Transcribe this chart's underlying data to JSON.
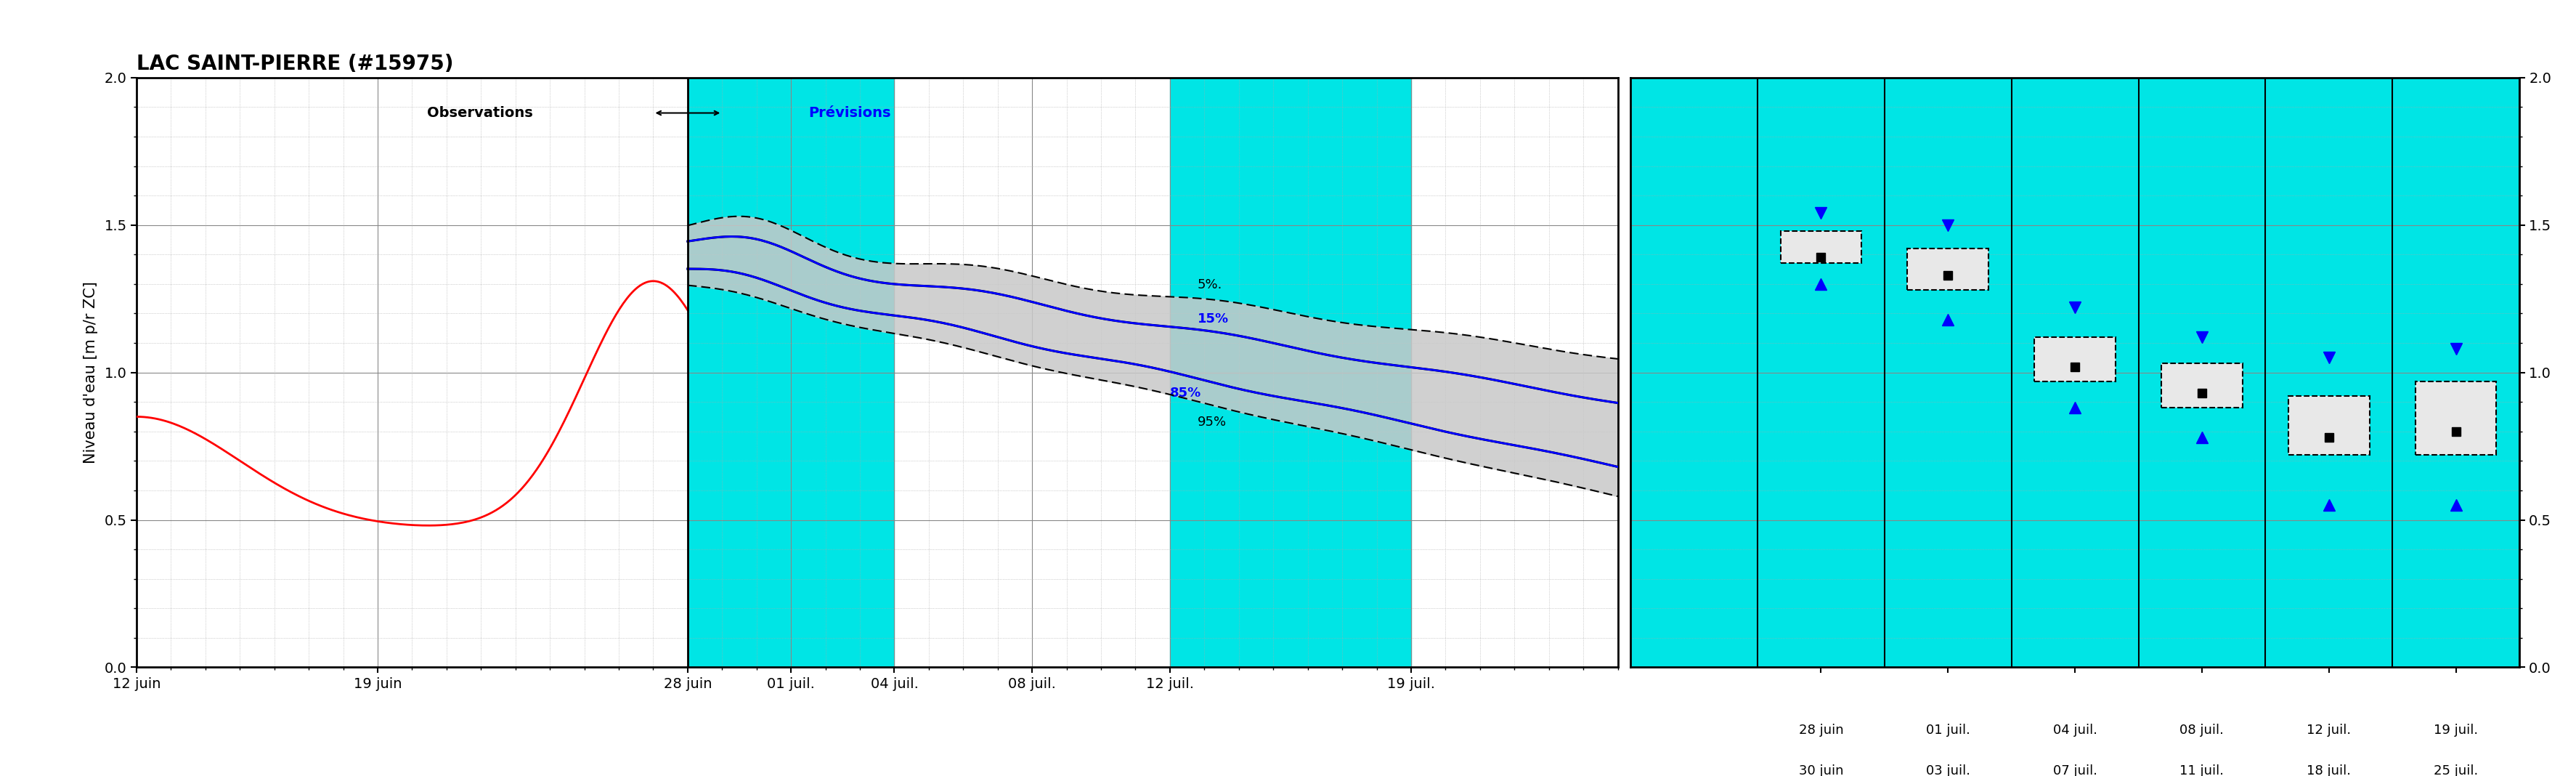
{
  "title": "LAC SAINT-PIERRE (#15975)",
  "ylabel": "Niveau d'eau [m p/r ZC]",
  "ylim": [
    0.0,
    2.0
  ],
  "yticks": [
    0.0,
    0.5,
    1.0,
    1.5,
    2.0
  ],
  "background_color": "#ffffff",
  "cyan_color": "#00e5e5",
  "obs_label": "Observations",
  "prev_label": "Prévisions",
  "label_5pct": "5%",
  "label_15pct": "15%",
  "label_85pct": "85%",
  "label_95pct": "95%",
  "main_xtick_labels": [
    "12 juin",
    "19 juin",
    "28 juin",
    "01 juil.",
    "04 juil.",
    "08 juil.",
    "12 juil.",
    "19 juil."
  ],
  "box_xtick_labels_line1": [
    "28 juin",
    "01 juil.",
    "04 juil.",
    "08 juil.",
    "12 juil.",
    "19 juil."
  ],
  "box_xtick_labels_line2": [
    "30 juin",
    "03 juil.",
    "07 juil.",
    "11 juil.",
    "18 juil.",
    "25 juil."
  ],
  "box_data": [
    {
      "wlo": 1.3,
      "q25": 1.37,
      "med": 1.4,
      "q75": 1.48,
      "whi": 1.54,
      "mean": 1.39
    },
    {
      "wlo": 1.18,
      "q25": 1.28,
      "med": 1.33,
      "q75": 1.42,
      "whi": 1.5,
      "mean": 1.33
    },
    {
      "wlo": 0.88,
      "q25": 0.97,
      "med": 1.03,
      "q75": 1.12,
      "whi": 1.22,
      "mean": 1.02
    },
    {
      "wlo": 0.78,
      "q25": 0.88,
      "med": 0.95,
      "q75": 1.03,
      "whi": 1.12,
      "mean": 0.93
    },
    {
      "wlo": 0.55,
      "q25": 0.72,
      "med": 0.8,
      "q75": 0.92,
      "whi": 1.05,
      "mean": 0.78
    },
    {
      "wlo": 0.55,
      "q25": 0.72,
      "med": 0.82,
      "q75": 0.97,
      "whi": 1.08,
      "mean": 0.8
    }
  ]
}
